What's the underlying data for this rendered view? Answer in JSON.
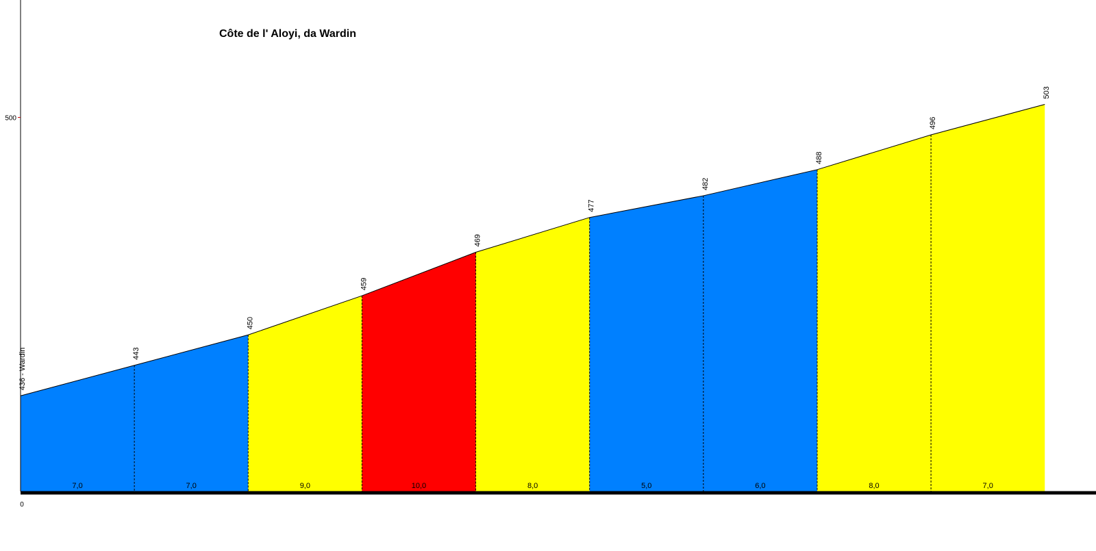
{
  "chart_data": {
    "type": "profile",
    "title": "Côte de l' Aloyi, da Wardin",
    "x": [
      0,
      0.1,
      0.2,
      0.3,
      0.4,
      0.5,
      0.6,
      0.7,
      0.8,
      0.9
    ],
    "values": [
      436,
      443,
      450,
      459,
      469,
      477,
      482,
      488,
      496,
      503
    ],
    "value_labels": [
      "436 - Wardin",
      "443",
      "450",
      "459",
      "469",
      "477",
      "482",
      "488",
      "496",
      "503"
    ],
    "gradients": {
      "values": [
        7,
        7,
        9,
        10,
        8,
        5,
        6,
        8,
        7
      ],
      "value_labels": [
        "7,0",
        "7,0",
        "9,0",
        "10,0",
        "8,0",
        "5,0",
        "6,0",
        "8,0",
        "7,0"
      ],
      "colors": [
        "#0080ff",
        "#0080ff",
        "#ffff00",
        "#ff0000",
        "#ffff00",
        "#0080ff",
        "#0080ff",
        "#ffff00",
        "#ffff00"
      ]
    },
    "ylim": [
      414,
      527
    ],
    "yticks": [
      500
    ],
    "xlim": [
      0,
      0.945
    ],
    "xticks": [
      0
    ]
  }
}
